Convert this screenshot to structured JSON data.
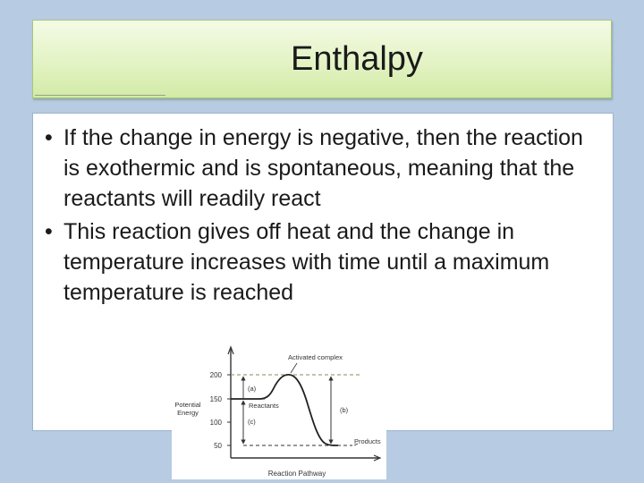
{
  "slide": {
    "title": "Enthalpy",
    "bullets": [
      "If the change in energy is negative, then the reaction is exothermic and is spontaneous, meaning that the reactants will readily react",
      "This reaction gives off heat and the change in temperature increases with time until a maximum temperature is reached"
    ]
  },
  "diagram": {
    "y_axis_label_line1": "Potential",
    "y_axis_label_line2": "Energy",
    "x_axis_label": "Reaction Pathway",
    "ticks": [
      "200",
      "150",
      "100",
      "50"
    ],
    "label_activated_complex": "Activated complex",
    "label_reactants": "Reactants",
    "label_products": "Products",
    "label_a": "(a)",
    "label_b": "(b)",
    "label_c": "(c)"
  }
}
